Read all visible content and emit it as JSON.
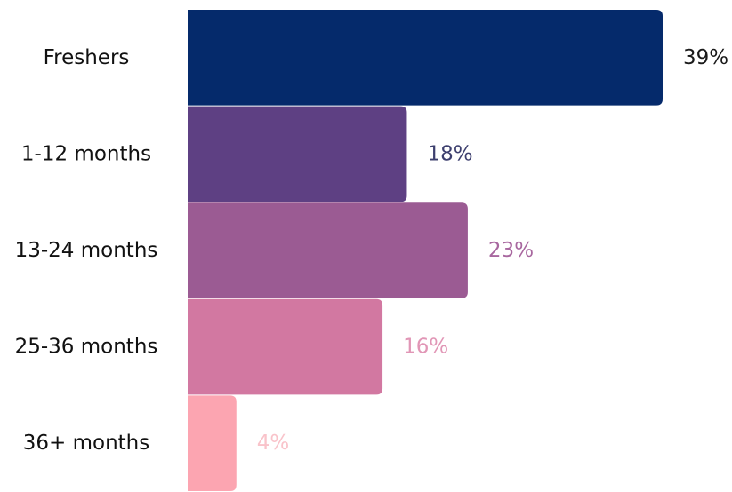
{
  "chart_data": {
    "type": "bar",
    "orientation": "horizontal",
    "categories": [
      "Freshers",
      "1-12 months",
      "13-24 months",
      "25-36 months",
      "36+ months"
    ],
    "values": [
      39,
      18,
      23,
      16,
      4
    ],
    "value_labels": [
      "39%",
      "18%",
      "23%",
      "16%",
      "4%"
    ],
    "colors": [
      "#052a6b",
      "#5e4083",
      "#9b5b93",
      "#d278a1",
      "#fca5b1"
    ],
    "label_colors": [
      "#1a1a1a",
      "#3d3f6e",
      "#a8679f",
      "#e196b6",
      "#f9c3ca"
    ]
  }
}
